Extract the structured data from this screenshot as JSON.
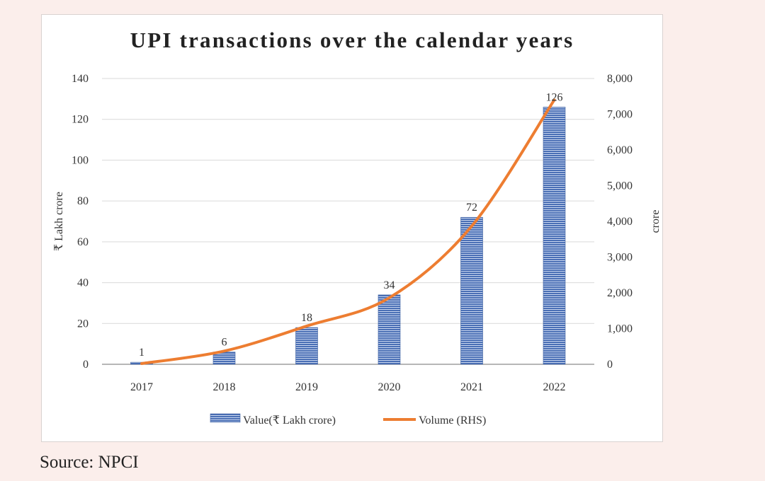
{
  "chart_data": {
    "type": "bar",
    "title": "UPI transactions over the calendar years",
    "categories": [
      "2017",
      "2018",
      "2019",
      "2020",
      "2021",
      "2022"
    ],
    "ylabel": "₹ Lakh crore",
    "y2label": "crore",
    "ylim": [
      0,
      140
    ],
    "y2lim": [
      0,
      8000
    ],
    "yticks": [
      "0",
      "20",
      "40",
      "60",
      "80",
      "100",
      "120",
      "140"
    ],
    "y2ticks": [
      "0",
      "1,000",
      "2,000",
      "3,000",
      "4,000",
      "5,000",
      "6,000",
      "7,000",
      "8,000"
    ],
    "grid": true,
    "legend_position": "bottom",
    "series": [
      {
        "name": "Value(₹ Lakh crore)",
        "type": "bar",
        "axis": "left",
        "color": "#4a6fb5",
        "values": [
          1,
          6,
          18,
          34,
          72,
          126
        ],
        "labels": [
          "1",
          "6",
          "18",
          "34",
          "72",
          "126"
        ]
      },
      {
        "name": "Volume (RHS)",
        "type": "line",
        "axis": "right",
        "color": "#ed7d31",
        "values": [
          20,
          370,
          1070,
          1860,
          3870,
          7400
        ]
      }
    ]
  },
  "source": "Source: NPCI"
}
